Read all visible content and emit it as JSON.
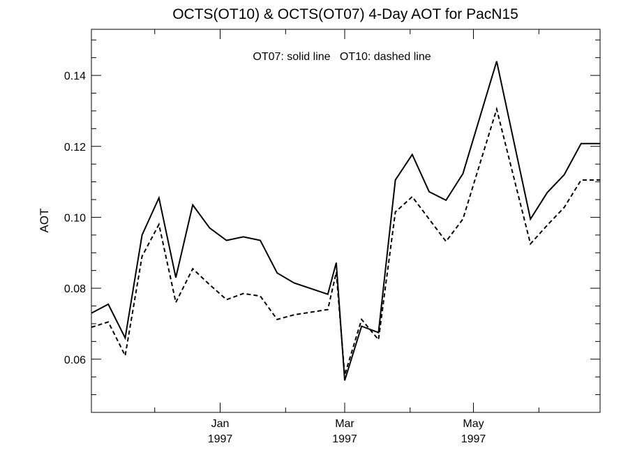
{
  "chart_data": {
    "type": "line",
    "title": "OCTS(OT10) & OCTS(OT07) 4-Day AOT for PacN15",
    "annotation": "OT07: solid line   OT10: dashed line",
    "xlabel": "",
    "ylabel": "AOT",
    "ylim": [
      0.045,
      0.153
    ],
    "xlim": [
      "1996-11-01",
      "1997-06-30"
    ],
    "yticks": [
      "0.06",
      "0.08",
      "0.10",
      "0.12",
      "0.14"
    ],
    "xticks": [
      {
        "date": "1997-01-01",
        "month": "Jan",
        "year": "1997"
      },
      {
        "date": "1997-03-01",
        "month": "Mar",
        "year": "1997"
      },
      {
        "date": "1997-05-01",
        "month": "May",
        "year": "1997"
      }
    ],
    "grid": false,
    "x": [
      "1996-11-01",
      "1996-11-09",
      "1996-11-17",
      "1996-11-25",
      "1996-12-03",
      "1996-12-11",
      "1996-12-19",
      "1996-12-27",
      "1997-01-04",
      "1997-01-12",
      "1997-01-20",
      "1997-01-28",
      "1997-02-05",
      "1997-02-21",
      "1997-02-25",
      "1997-03-01",
      "1997-03-09",
      "1997-03-17",
      "1997-03-25",
      "1997-04-02",
      "1997-04-10",
      "1997-04-18",
      "1997-04-26",
      "1997-05-12",
      "1997-05-28",
      "1997-06-05",
      "1997-06-13",
      "1997-06-21",
      "1997-06-30"
    ],
    "series": [
      {
        "name": "OT07",
        "style": "solid",
        "values": [
          0.073,
          0.0755,
          0.066,
          0.095,
          0.1055,
          0.083,
          0.1035,
          0.097,
          0.0935,
          0.0945,
          0.0935,
          0.0843,
          0.0815,
          0.0783,
          0.0872,
          0.054,
          0.0693,
          0.0675,
          0.1105,
          0.1177,
          0.1072,
          0.1048,
          0.1123,
          0.144,
          0.0995,
          0.107,
          0.112,
          0.1208,
          0.1208
        ]
      },
      {
        "name": "OT10",
        "style": "dashed",
        "values": [
          0.069,
          0.0705,
          0.061,
          0.089,
          0.098,
          0.076,
          0.0855,
          0.081,
          0.0768,
          0.0785,
          0.0778,
          0.0712,
          0.0725,
          0.074,
          0.0845,
          0.0555,
          0.0712,
          0.0655,
          0.1015,
          0.1058,
          0.0995,
          0.0932,
          0.0995,
          0.1305,
          0.0925,
          0.0978,
          0.1028,
          0.1105,
          0.1105
        ]
      }
    ]
  }
}
